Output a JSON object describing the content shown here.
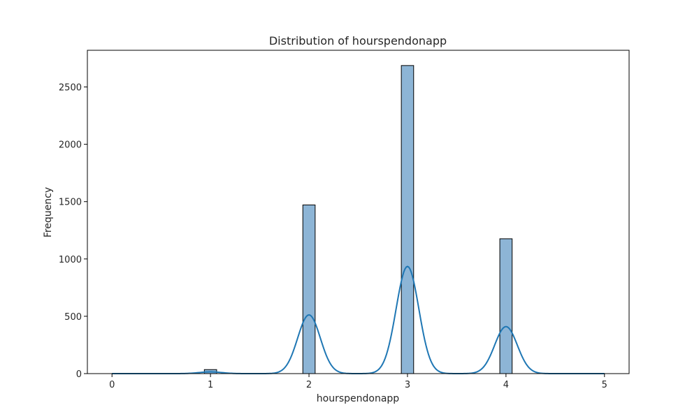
{
  "chart_data": {
    "type": "bar",
    "title": "Distribution of hourspendonapp",
    "xlabel": "hourspendonapp",
    "ylabel": "Frequency",
    "xlim": [
      -0.25,
      5.25
    ],
    "ylim": [
      0,
      2820
    ],
    "xticks": [
      "0",
      "1",
      "2",
      "3",
      "4",
      "5"
    ],
    "yticks": [
      "0",
      "500",
      "1000",
      "1500",
      "2000",
      "2500"
    ],
    "bin_width": 0.125,
    "bars": [
      {
        "x": 1.0,
        "value": 35
      },
      {
        "x": 2.0,
        "value": 1471
      },
      {
        "x": 3.0,
        "value": 2687
      },
      {
        "x": 4.0,
        "value": 1176
      }
    ],
    "kde": {
      "name": "density",
      "x_range": [
        0,
        5
      ],
      "peaks": [
        {
          "x": 1.0,
          "y": 15,
          "sigma": 0.115
        },
        {
          "x": 2.0,
          "y": 512,
          "sigma": 0.115
        },
        {
          "x": 3.0,
          "y": 935,
          "sigma": 0.115
        },
        {
          "x": 4.0,
          "y": 410,
          "sigma": 0.115
        }
      ]
    },
    "colors": {
      "bar_fill": "#8db5d6",
      "bar_edge": "#000000",
      "kde_line": "#1f77b4"
    },
    "grid": false
  }
}
